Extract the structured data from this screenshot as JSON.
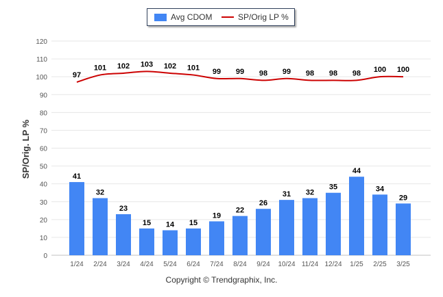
{
  "chart_data": {
    "type": "bar",
    "categories": [
      "1/24",
      "2/24",
      "3/24",
      "4/24",
      "5/24",
      "6/24",
      "7/24",
      "8/24",
      "9/24",
      "10/24",
      "11/24",
      "12/24",
      "1/25",
      "2/25",
      "3/25"
    ],
    "series": [
      {
        "name": "Avg CDOM",
        "kind": "bar",
        "color": "#4286f4",
        "values": [
          41,
          32,
          23,
          15,
          14,
          15,
          19,
          22,
          26,
          31,
          32,
          35,
          44,
          34,
          29
        ]
      },
      {
        "name": "SP/Orig LP %",
        "kind": "line",
        "color": "#cc0000",
        "values": [
          97,
          101,
          102,
          103,
          102,
          101,
          99,
          99,
          98,
          99,
          98,
          98,
          98,
          100,
          100
        ]
      }
    ],
    "ylabel": "SP/Orig. LP %",
    "ylim": [
      0,
      120
    ],
    "yticks": [
      0,
      10,
      20,
      30,
      40,
      50,
      60,
      70,
      80,
      90,
      100,
      110,
      120
    ],
    "grid": true,
    "legend_position": "top-center"
  },
  "legend": {
    "bar_label": "Avg CDOM",
    "line_label": "SP/Orig LP %"
  },
  "footer": {
    "copyright": "Copyright © Trendgraphix, Inc."
  }
}
